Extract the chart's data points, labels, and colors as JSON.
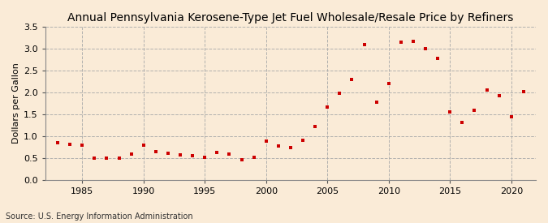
{
  "title": "Annual Pennsylvania Kerosene-Type Jet Fuel Wholesale/Resale Price by Refiners",
  "ylabel": "Dollars per Gallon",
  "source": "Source: U.S. Energy Information Administration",
  "background_color": "#faebd7",
  "plot_background_color": "#faebd7",
  "marker_color": "#cc0000",
  "years": [
    1983,
    1984,
    1985,
    1986,
    1987,
    1988,
    1989,
    1990,
    1991,
    1992,
    1993,
    1994,
    1995,
    1996,
    1997,
    1998,
    1999,
    2000,
    2001,
    2002,
    2003,
    2004,
    2005,
    2006,
    2007,
    2008,
    2009,
    2010,
    2011,
    2012,
    2013,
    2014,
    2015,
    2016,
    2017,
    2018,
    2019,
    2020,
    2021
  ],
  "values": [
    0.84,
    0.81,
    0.8,
    0.5,
    0.5,
    0.5,
    0.58,
    0.8,
    0.65,
    0.6,
    0.57,
    0.55,
    0.52,
    0.63,
    0.59,
    0.46,
    0.51,
    0.88,
    0.78,
    0.73,
    0.91,
    1.22,
    1.67,
    1.98,
    2.3,
    3.09,
    1.77,
    2.2,
    3.14,
    3.16,
    3.0,
    2.78,
    1.55,
    1.32,
    1.59,
    2.06,
    1.93,
    1.45,
    2.01
  ],
  "xlim": [
    1982,
    2022
  ],
  "ylim": [
    0.0,
    3.5
  ],
  "yticks": [
    0.0,
    0.5,
    1.0,
    1.5,
    2.0,
    2.5,
    3.0,
    3.5
  ],
  "xticks": [
    1985,
    1990,
    1995,
    2000,
    2005,
    2010,
    2015,
    2020
  ],
  "grid_color": "#aaaaaa",
  "title_fontsize": 10,
  "label_fontsize": 8,
  "tick_fontsize": 8,
  "source_fontsize": 7
}
